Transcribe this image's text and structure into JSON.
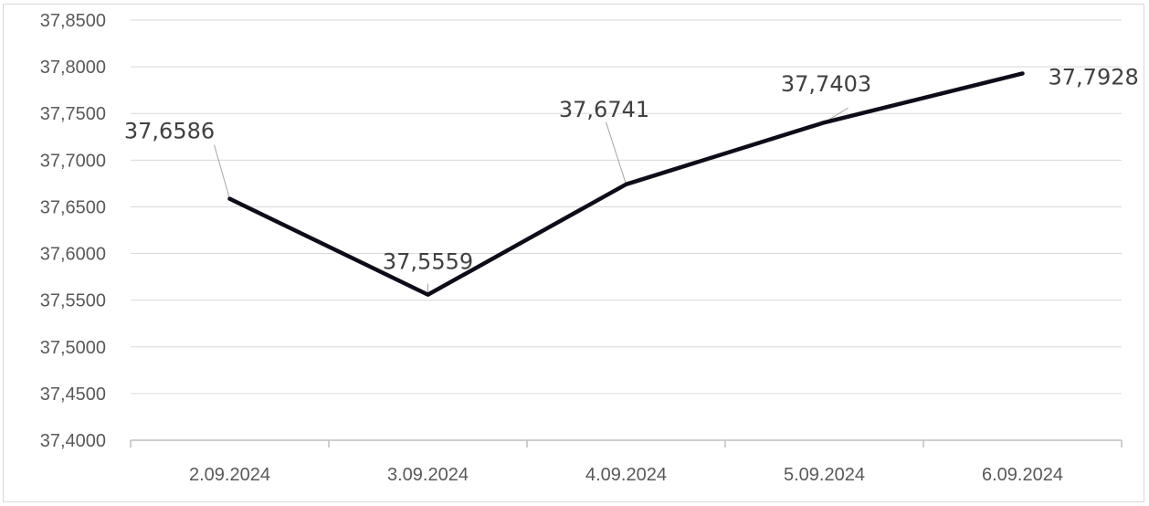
{
  "chart_data": {
    "type": "line",
    "categories": [
      "2.09.2024",
      "3.09.2024",
      "4.09.2024",
      "5.09.2024",
      "6.09.2024"
    ],
    "series": [
      {
        "values": [
          37.6586,
          37.5559,
          37.6741,
          37.7403,
          37.7928
        ]
      }
    ],
    "data_labels": [
      "37,6586",
      "37,5559",
      "37,6741",
      "37,7403",
      "37,7928"
    ],
    "y_ticks": [
      37.4,
      37.45,
      37.5,
      37.55,
      37.6,
      37.65,
      37.7,
      37.75,
      37.8,
      37.85
    ],
    "y_tick_labels": [
      "37,4000",
      "37,4500",
      "37,5000",
      "37,5500",
      "37,6000",
      "37,6500",
      "37,7000",
      "37,7500",
      "37,8000",
      "37,8500"
    ],
    "ylim": [
      37.4,
      37.85
    ],
    "grid": true,
    "legend": false,
    "colors": {
      "line": "#0d0d1a",
      "grid": "#d9d9d9",
      "axis": "#bfbfbf",
      "leader": "#a6a6a6",
      "tick_text": "#595959",
      "label_text": "#404040"
    }
  }
}
